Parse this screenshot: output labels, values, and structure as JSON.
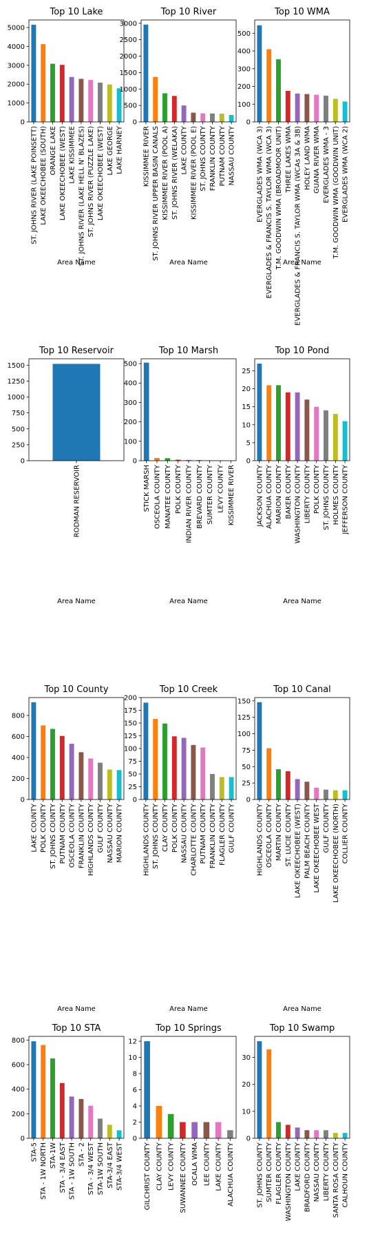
{
  "colors": [
    "#1f77b4",
    "#ff7f0e",
    "#2ca02c",
    "#d62728",
    "#9467bd",
    "#8c564b",
    "#e377c2",
    "#7f7f7f",
    "#bcbd22",
    "#17becf"
  ],
  "chart_data": [
    {
      "type": "bar",
      "title": "Top 10 Lake",
      "xlabel": "Area Name",
      "ylabel": "",
      "ylim": [
        0,
        5400
      ],
      "yticks": [
        0,
        1000,
        2000,
        3000,
        4000,
        5000
      ],
      "categories": [
        "ST. JOHNS RIVER (LAKE POINSETT)",
        "LAKE OKEECHOBEE (SOUTH)",
        "ORANGE LAKE",
        "LAKE OKEECHOBEE (WEST)",
        "LAKE KISSIMMEE",
        "ST. JOHNS RIVER (LAKE HELL N' BLAZES)",
        "ST. JOHNS RIVER (PUZZLE LAKE)",
        "LAKE OKEECHOBEE (WEST)",
        "LAKE GEORGE",
        "LAKE HARNEY"
      ],
      "values": [
        5150,
        4120,
        3080,
        3020,
        2380,
        2280,
        2220,
        2080,
        1980,
        1780
      ]
    },
    {
      "type": "bar",
      "title": "Top 10 River",
      "xlabel": "Area Name",
      "ylabel": "",
      "ylim": [
        0,
        3100
      ],
      "yticks": [
        0,
        500,
        1000,
        1500,
        2000,
        2500,
        3000
      ],
      "categories": [
        "KISSIMMEE RIVER",
        "ST. JOHNS RIVER UPPER BASIN CANALS",
        "KISSIMMEE RIVER (POOL A)",
        "ST. JOHNS RIVER (WELAKA)",
        "LAKE COUNTY",
        "KISSIMMEE RIVER (POOL E)",
        "ST. JOHNS COUNTY",
        "FRANKLIN COUNTY",
        "PUTNAM COUNTY",
        "NASSAU COUNTY"
      ],
      "values": [
        2960,
        1370,
        870,
        790,
        500,
        280,
        260,
        255,
        250,
        210
      ]
    },
    {
      "type": "bar",
      "title": "Top 10 WMA",
      "xlabel": "Area Name",
      "ylabel": "",
      "ylim": [
        0,
        575
      ],
      "yticks": [
        0,
        100,
        200,
        300,
        400,
        500
      ],
      "categories": [
        "EVERGLADES WMA (WCA 3)",
        "EVERGLADES & FRANCIS S. TAYLOR WMA (WCA 3)",
        "T.M. GOODWIN WMA (BROADMOOR UNIT)",
        "THREE LAKES WMA",
        "EVERGLADES & FRANCIS S. TAYLOR WMA (WCAs 3A & 3B)",
        "HOLEY LAND WMA",
        "GUANA RIVER WMA",
        "EVERGLADES WMA - 3",
        "T.M. GOODWIN WMA (GOODWIN UNIT)",
        "EVERGLADES WMA (WCA 2)"
      ],
      "values": [
        545,
        410,
        353,
        175,
        160,
        157,
        153,
        148,
        130,
        115
      ]
    },
    {
      "type": "bar",
      "title": "Top 10 Reservoir",
      "xlabel": "Area Name",
      "ylabel": "",
      "ylim": [
        0,
        1600
      ],
      "yticks": [
        0,
        250,
        500,
        750,
        1000,
        1250,
        1500
      ],
      "categories": [
        "RODMAN RESERVOIR"
      ],
      "values": [
        1520
      ]
    },
    {
      "type": "bar",
      "title": "Top 10 Marsh",
      "xlabel": "Area Name",
      "ylabel": "",
      "ylim": [
        0,
        525
      ],
      "yticks": [
        0,
        100,
        200,
        300,
        400,
        500
      ],
      "categories": [
        "STICK MARSH",
        "OSCEOLA COUNTY",
        "MANATEE COUNTY",
        "POLK COUNTY",
        "INDIAN RIVER COUNTY",
        "BREVARD COUNTY",
        "SUMTER COUNTY",
        "LEVY COUNTY",
        "KISSIMMEE RIVER"
      ],
      "values": [
        505,
        14,
        13,
        5,
        4,
        3,
        2,
        1,
        1
      ]
    },
    {
      "type": "bar",
      "title": "Top 10 Pond",
      "xlabel": "Area Name",
      "ylabel": "",
      "ylim": [
        0,
        28.35
      ],
      "yticks": [
        0,
        5,
        10,
        15,
        20,
        25
      ],
      "categories": [
        "JACKSON COUNTY",
        "ALACHUA COUNTY",
        "MARION COUNTY",
        "BAKER COUNTY",
        "WASHINGTON COUNTY",
        "LIBERTY COUNTY",
        "POLK COUNTY",
        "ST. JOHNS COUNTY",
        "HOLMES COUNTY",
        "JEFFERSON COUNTY"
      ],
      "values": [
        27,
        21,
        21,
        19,
        19,
        17,
        15,
        14,
        13,
        11
      ]
    },
    {
      "type": "bar",
      "title": "Top 10 County",
      "xlabel": "Area Name",
      "ylabel": "",
      "ylim": [
        0,
        970
      ],
      "yticks": [
        0,
        200,
        400,
        600,
        800
      ],
      "categories": [
        "LAKE COUNTY",
        "POLK COUNTY",
        "ST. JOHNS COUNTY",
        "PUTNAM COUNTY",
        "OSCEOLA COUNTY",
        "FRANKLIN COUNTY",
        "HIGHLANDS COUNTY",
        "GULF COUNTY",
        "NASSAU COUNTY",
        "MARION COUNTY"
      ],
      "values": [
        925,
        705,
        672,
        605,
        530,
        450,
        390,
        350,
        285,
        280
      ]
    },
    {
      "type": "bar",
      "title": "Top 10 Creek",
      "xlabel": "Area Name",
      "ylabel": "",
      "ylim": [
        0,
        200
      ],
      "yticks": [
        0,
        25,
        50,
        75,
        100,
        125,
        150,
        175,
        200
      ],
      "categories": [
        "HIGHLANDS COUNTY",
        "ST. JOHNS COUNTY",
        "CLAY COUNTY",
        "POLK COUNTY",
        "NASSAU COUNTY",
        "CHARLOTTE COUNTY",
        "PUTNAM COUNTY",
        "FRANKLIN COUNTY",
        "FLAGLER COUNTY",
        "GULF COUNTY"
      ],
      "values": [
        190,
        158,
        149,
        124,
        121,
        107,
        102,
        50,
        44,
        44
      ]
    },
    {
      "type": "bar",
      "title": "Top 10 Canal",
      "xlabel": "Area Name",
      "ylabel": "",
      "ylim": [
        0,
        155
      ],
      "yticks": [
        0,
        25,
        50,
        75,
        100,
        125,
        150
      ],
      "categories": [
        "HIGHLANDS COUNTY",
        "OSCEOLA COUNTY",
        "MARTIN COUNTY",
        "ST. LUCIE COUNTY",
        "LAKE OKEECHOBEE (WEST)",
        "PALM BEACH COUNTY",
        "LAKE OKEECHOBEE WEST",
        "GULF COUNTY",
        "LAKE OKEECHOBEE (NORTH)",
        "COLLIER COUNTY"
      ],
      "values": [
        148,
        78,
        46,
        43,
        31,
        27,
        18,
        15,
        14,
        14
      ]
    },
    {
      "type": "bar",
      "title": "Top 10 STA",
      "xlabel": "Area Name",
      "ylabel": "",
      "ylim": [
        0,
        830
      ],
      "yticks": [
        0,
        200,
        400,
        600,
        800
      ],
      "categories": [
        "STA-5",
        "STA - 1W NORTH",
        "STA-1W",
        "STA - 3/4 EAST",
        "STA - 1W SOUTH",
        "STA - 2",
        "STA - 3/4 WEST",
        "STA-1W SOUTH",
        "STA-3/4 EAST",
        "STA-3/4 WEST"
      ],
      "values": [
        790,
        760,
        650,
        450,
        340,
        320,
        265,
        160,
        110,
        65
      ]
    },
    {
      "type": "bar",
      "title": "Top 10 Springs",
      "xlabel": "Area Name",
      "ylabel": "",
      "ylim": [
        0,
        12.6
      ],
      "yticks": [
        0,
        2,
        4,
        6,
        8,
        10,
        12
      ],
      "categories": [
        "GILCHRIST COUNTY",
        "CLAY COUNTY",
        "LEVY COUNTY",
        "SUWANNEE COUNTY",
        "OCALA WMA",
        "LEE COUNTY",
        "LAKE COUNTY",
        "ALACHUA COUNTY"
      ],
      "values": [
        12,
        4,
        3,
        2,
        2,
        2,
        2,
        1
      ]
    },
    {
      "type": "bar",
      "title": "Top 10 Swamp",
      "xlabel": "Area Name",
      "ylabel": "",
      "ylim": [
        0,
        37.8
      ],
      "yticks": [
        0,
        10,
        20,
        30
      ],
      "categories": [
        "ST. JOHNS COUNTY",
        "SUMTER COUNTY",
        "FLAGLER COUNTY",
        "WASHINGTON COUNTY",
        "LAKE COUNTY",
        "BRADFORD COUNTY",
        "NASSAU COUNTY",
        "LIBERTY COUNTY",
        "SANTA ROSA COUNTY",
        "CALHOUN COUNTY"
      ],
      "values": [
        36,
        33,
        6,
        5,
        4,
        3,
        3,
        3,
        2,
        2
      ]
    }
  ]
}
